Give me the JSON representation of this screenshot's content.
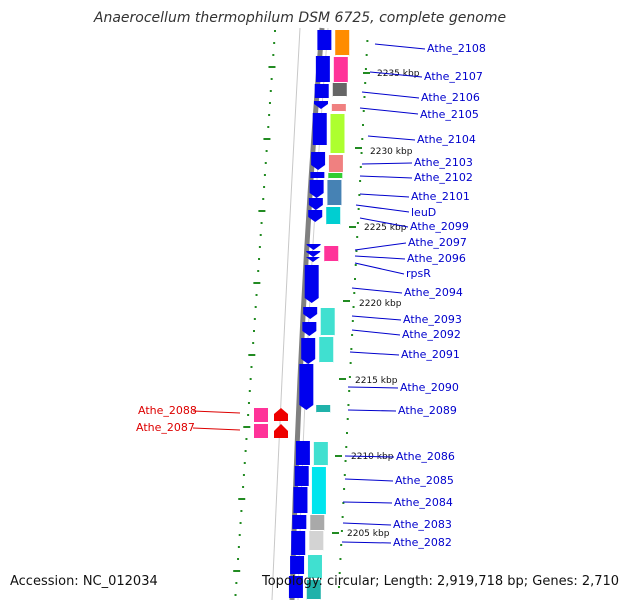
{
  "title": "Anaerocellum thermophilum DSM 6725, complete genome",
  "accession": "Accession: NC_012034",
  "summary": "Topology: circular; Length: 2,919,718 bp; Genes: 2,710",
  "colors": {
    "strand_gene": "#0000ee",
    "label_forward": "#0000cc",
    "label_reverse": "#dd0000",
    "backbone": "#808080",
    "tick": "#228b22"
  },
  "kbp_ticks": [
    "2235 kbp",
    "2230 kbp",
    "2225 kbp",
    "2220 kbp",
    "2215 kbp",
    "2210 kbp",
    "2205 kbp"
  ],
  "genes": [
    "Athe_2108",
    "Athe_2107",
    "Athe_2106",
    "Athe_2105",
    "Athe_2104",
    "Athe_2103",
    "Athe_2102",
    "Athe_2101",
    "leuD",
    "Athe_2099",
    "Athe_2097",
    "Athe_2096",
    "rpsR",
    "Athe_2094",
    "Athe_2093",
    "Athe_2092",
    "Athe_2091",
    "Athe_2090",
    "Athe_2089",
    "Athe_2086",
    "Athe_2085",
    "Athe_2084",
    "Athe_2083",
    "Athe_2082"
  ],
  "reverse_genes": [
    "Athe_2088",
    "Athe_2087"
  ]
}
